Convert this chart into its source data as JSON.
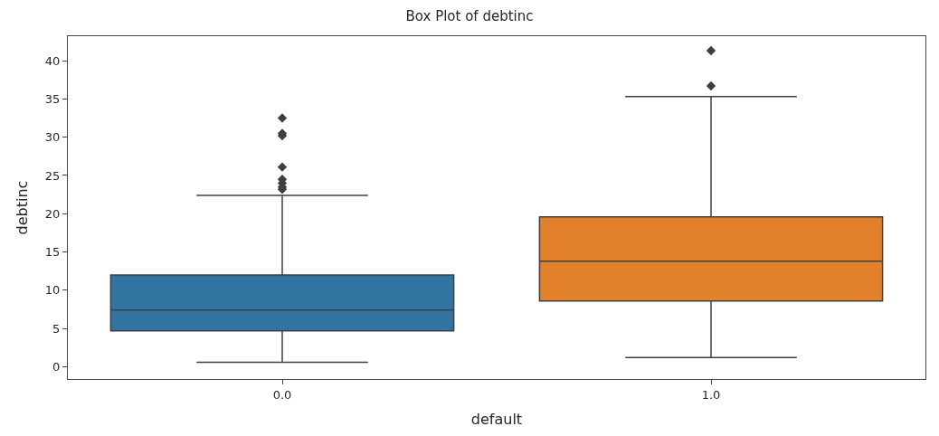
{
  "chart_data": {
    "type": "box",
    "title": "Box Plot of debtinc",
    "xlabel": "default",
    "ylabel": "debtinc",
    "categories": [
      "0.0",
      "1.0"
    ],
    "colors": [
      "#3274a1",
      "#e1812c"
    ],
    "boxes": [
      {
        "low": 0.6,
        "q1": 4.7,
        "median": 7.4,
        "q3": 12.0,
        "high": 22.4,
        "outliers": [
          32.5,
          30.5,
          30.2,
          26.1,
          24.5,
          24.0,
          23.5,
          23.2
        ]
      },
      {
        "low": 1.2,
        "q1": 8.6,
        "median": 13.8,
        "q3": 19.6,
        "high": 35.3,
        "outliers": [
          36.7,
          41.3
        ]
      }
    ],
    "ylim": [
      -1.6,
      43.2
    ],
    "yticks": [
      0,
      5,
      10,
      15,
      20,
      25,
      30,
      35,
      40
    ],
    "marker": "diamond"
  }
}
